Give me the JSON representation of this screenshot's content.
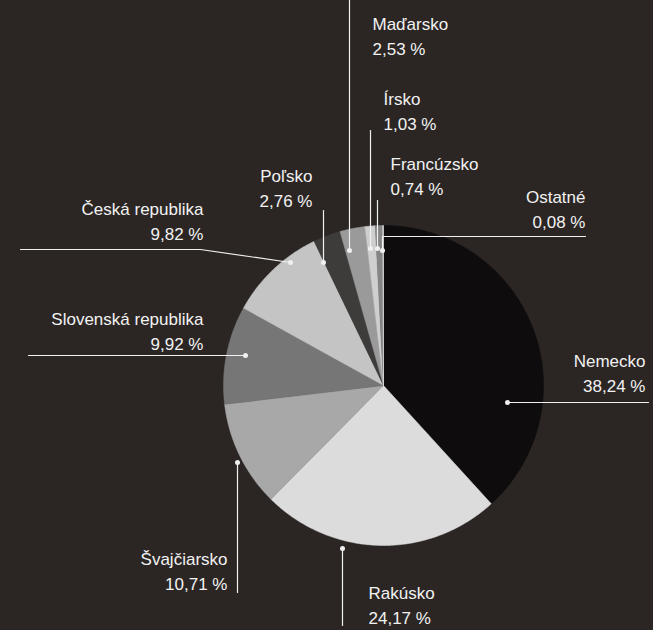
{
  "chart_data": {
    "type": "pie",
    "categories": [
      "Nemecko",
      "Rakúsko",
      "Švajčiarsko",
      "Slovenská republika",
      "Česká republika",
      "Poľsko",
      "Maďarsko",
      "Írsko",
      "Francúzsko",
      "Ostatné"
    ],
    "values": [
      38.24,
      24.17,
      10.71,
      9.92,
      9.82,
      2.76,
      2.53,
      1.03,
      0.74,
      0.08
    ],
    "value_labels": [
      "38,24 %",
      "24,17 %",
      "10,71 %",
      "9,92 %",
      "9,82 %",
      "2,76 %",
      "2,53 %",
      "1,03 %",
      "0,74 %",
      "0,08 %"
    ],
    "colors": [
      "#0e0c0c",
      "#dcdcdc",
      "#a8a8a8",
      "#767676",
      "#c4c4c4",
      "#3e3b3b",
      "#9a9a9a",
      "#cfcfcf",
      "#858585",
      "#ececec"
    ],
    "data_labels": true
  }
}
